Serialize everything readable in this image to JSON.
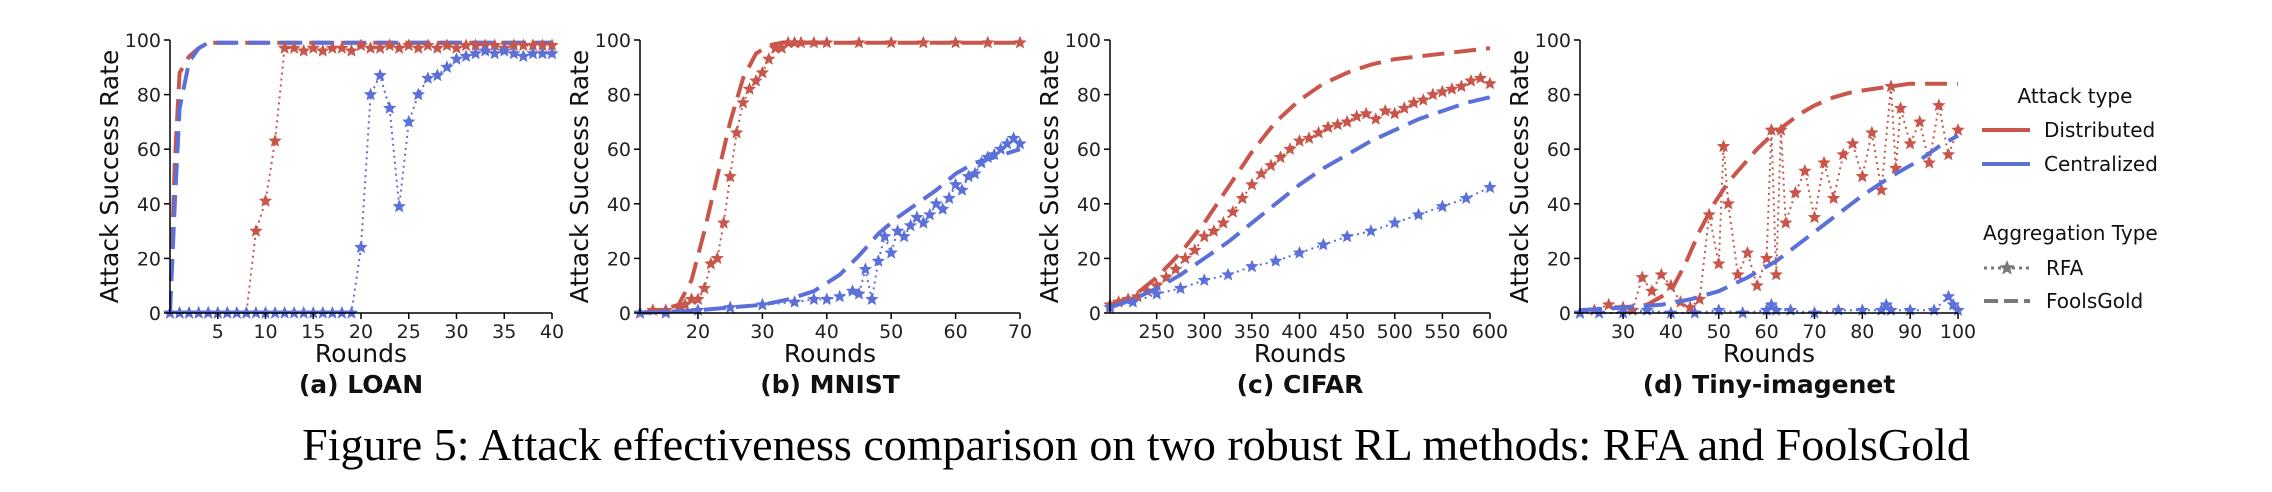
{
  "caption": "Figure 5: Attack effectiveness comparison on two robust RL methods: RFA and FoolsGold",
  "colors": {
    "distributed": "#c9564a",
    "centralized": "#5b70d9",
    "legend_gray": "#7a7a7a",
    "axis": "#000000"
  },
  "legend": {
    "attack_title": "Attack type",
    "attack_items": [
      "Distributed",
      "Centralized"
    ],
    "aggregation_title": "Aggregation Type",
    "aggregation_items": [
      "RFA",
      "FoolsGold"
    ]
  },
  "chart_data": [
    {
      "type": "line",
      "panel_title": "(a) LOAN",
      "xlabel": "Rounds",
      "ylabel": "Attack Success Rate",
      "xlim": [
        0,
        40
      ],
      "ylim": [
        0,
        100
      ],
      "xticks": [
        5,
        10,
        15,
        20,
        25,
        30,
        35,
        40
      ],
      "yticks": [
        0,
        20,
        40,
        60,
        80,
        100
      ],
      "series": [
        {
          "attack": "Distributed",
          "aggregation": "FoolsGold",
          "x": [
            0,
            0.5,
            1,
            2,
            3,
            4,
            5,
            8,
            12,
            20,
            30,
            40
          ],
          "y": [
            0,
            55,
            88,
            94,
            97,
            99,
            99,
            99,
            99,
            99,
            99,
            99
          ]
        },
        {
          "attack": "Centralized",
          "aggregation": "FoolsGold",
          "x": [
            0,
            0.5,
            1,
            2,
            3,
            4,
            6,
            10,
            20,
            30,
            40
          ],
          "y": [
            0,
            40,
            75,
            92,
            97,
            99,
            99,
            99,
            99,
            99,
            99
          ]
        },
        {
          "attack": "Distributed",
          "aggregation": "RFA",
          "x": [
            0,
            1,
            2,
            3,
            4,
            5,
            6,
            7,
            8,
            9,
            10,
            11,
            12,
            13,
            14,
            15,
            16,
            17,
            18,
            19,
            20,
            21,
            22,
            23,
            24,
            25,
            26,
            27,
            28,
            29,
            30,
            31,
            32,
            33,
            34,
            35,
            36,
            37,
            38,
            39,
            40
          ],
          "y": [
            0,
            0,
            0,
            0,
            0,
            0,
            0,
            0,
            0,
            30,
            41,
            63,
            97,
            97,
            96,
            97,
            96,
            97,
            97,
            96,
            98,
            97,
            97,
            98,
            97,
            98,
            97,
            98,
            97,
            98,
            97,
            98,
            98,
            98,
            98,
            97,
            98,
            98,
            98,
            98,
            98
          ]
        },
        {
          "attack": "Centralized",
          "aggregation": "RFA",
          "x": [
            0,
            1,
            2,
            3,
            4,
            5,
            6,
            7,
            8,
            9,
            10,
            11,
            12,
            13,
            14,
            15,
            16,
            17,
            18,
            19,
            20,
            21,
            22,
            23,
            24,
            25,
            26,
            27,
            28,
            29,
            30,
            31,
            32,
            33,
            34,
            35,
            36,
            37,
            38,
            39,
            40
          ],
          "y": [
            0,
            0,
            0,
            0,
            0,
            0,
            0,
            0,
            0,
            0,
            0,
            0,
            0,
            0,
            0,
            0,
            0,
            0,
            0,
            0,
            24,
            80,
            87,
            75,
            39,
            70,
            80,
            86,
            87,
            90,
            93,
            94,
            95,
            96,
            95,
            96,
            95,
            94,
            95,
            95,
            95
          ]
        }
      ]
    },
    {
      "type": "line",
      "panel_title": "(b) MNIST",
      "xlabel": "Rounds",
      "ylabel": "Attack Success Rate",
      "xlim": [
        11,
        70
      ],
      "ylim": [
        0,
        100
      ],
      "xticks": [
        20,
        30,
        40,
        50,
        60,
        70
      ],
      "yticks": [
        0,
        20,
        40,
        60,
        80,
        100
      ],
      "series": [
        {
          "attack": "Distributed",
          "aggregation": "FoolsGold",
          "x": [
            11,
            14,
            17,
            19,
            21,
            23,
            25,
            27,
            29,
            31,
            33,
            35,
            40,
            50,
            60,
            70
          ],
          "y": [
            0,
            1,
            3,
            12,
            30,
            50,
            70,
            86,
            95,
            98,
            99,
            99,
            99,
            99,
            99,
            99
          ]
        },
        {
          "attack": "Distributed",
          "aggregation": "RFA",
          "x": [
            11,
            13,
            15,
            17,
            18,
            19,
            20,
            21,
            22,
            23,
            24,
            25,
            26,
            27,
            28,
            29,
            30,
            31,
            32,
            33,
            34,
            35,
            36,
            38,
            40,
            45,
            50,
            55,
            60,
            65,
            70
          ],
          "y": [
            0,
            1,
            1,
            2,
            3,
            5,
            5,
            9,
            18,
            20,
            33,
            50,
            66,
            77,
            82,
            85,
            88,
            93,
            97,
            97,
            99,
            99,
            99,
            99,
            99,
            99,
            99,
            99,
            99,
            99,
            99
          ]
        },
        {
          "attack": "Centralized",
          "aggregation": "FoolsGold",
          "x": [
            11,
            20,
            25,
            30,
            34,
            38,
            42,
            45,
            48,
            51,
            54,
            57,
            60,
            63,
            66,
            70
          ],
          "y": [
            0,
            1,
            2,
            3,
            5,
            8,
            14,
            21,
            29,
            35,
            40,
            45,
            51,
            55,
            57,
            60
          ]
        },
        {
          "attack": "Centralized",
          "aggregation": "RFA",
          "x": [
            11,
            15,
            20,
            25,
            30,
            35,
            38,
            40,
            42,
            44,
            45,
            46,
            47,
            48,
            49,
            50,
            51,
            52,
            53,
            54,
            55,
            56,
            57,
            58,
            59,
            60,
            61,
            62,
            63,
            64,
            65,
            66,
            67,
            68,
            69,
            70
          ],
          "y": [
            0,
            0,
            1,
            2,
            3,
            4,
            5,
            5,
            6,
            8,
            7,
            16,
            5,
            19,
            28,
            22,
            30,
            28,
            32,
            35,
            33,
            36,
            40,
            38,
            42,
            47,
            45,
            50,
            51,
            55,
            57,
            58,
            60,
            62,
            64,
            62
          ]
        }
      ]
    },
    {
      "type": "line",
      "panel_title": "(c) CIFAR",
      "xlabel": "Rounds",
      "ylabel": "Attack Success Rate",
      "xlim": [
        201,
        600
      ],
      "ylim": [
        0,
        100
      ],
      "xticks": [
        250,
        300,
        350,
        400,
        450,
        500,
        550,
        600
      ],
      "yticks": [
        0,
        20,
        40,
        60,
        80,
        100
      ],
      "series": [
        {
          "attack": "Distributed",
          "aggregation": "FoolsGold",
          "x": [
            201,
            225,
            250,
            275,
            300,
            325,
            350,
            375,
            400,
            425,
            450,
            475,
            500,
            525,
            550,
            575,
            600
          ],
          "y": [
            3,
            6,
            13,
            22,
            33,
            46,
            59,
            70,
            78,
            84,
            88,
            91,
            93,
            94,
            95,
            96,
            97
          ]
        },
        {
          "attack": "Distributed",
          "aggregation": "RFA",
          "x": [
            201,
            210,
            220,
            230,
            240,
            250,
            260,
            270,
            280,
            290,
            300,
            310,
            320,
            330,
            340,
            350,
            360,
            370,
            380,
            390,
            400,
            410,
            420,
            430,
            440,
            450,
            460,
            470,
            480,
            490,
            500,
            510,
            520,
            530,
            540,
            550,
            560,
            570,
            580,
            590,
            600
          ],
          "y": [
            3,
            4,
            5,
            6,
            8,
            10,
            13,
            16,
            20,
            23,
            28,
            30,
            33,
            37,
            42,
            47,
            51,
            54,
            57,
            60,
            63,
            64,
            66,
            68,
            69,
            70,
            72,
            73,
            71,
            74,
            73,
            75,
            77,
            78,
            80,
            81,
            82,
            83,
            85,
            86,
            84
          ]
        },
        {
          "attack": "Centralized",
          "aggregation": "FoolsGold",
          "x": [
            201,
            225,
            250,
            275,
            300,
            325,
            350,
            375,
            400,
            425,
            450,
            475,
            500,
            525,
            550,
            575,
            600
          ],
          "y": [
            2,
            5,
            9,
            14,
            20,
            26,
            33,
            40,
            47,
            53,
            58,
            63,
            67,
            71,
            74,
            77,
            79
          ]
        },
        {
          "attack": "Centralized",
          "aggregation": "RFA",
          "x": [
            201,
            225,
            250,
            275,
            300,
            325,
            350,
            375,
            400,
            425,
            450,
            475,
            500,
            525,
            550,
            575,
            600
          ],
          "y": [
            2,
            4,
            7,
            9,
            12,
            14,
            17,
            19,
            22,
            25,
            28,
            30,
            33,
            36,
            39,
            42,
            46
          ]
        }
      ]
    },
    {
      "type": "line",
      "panel_title": "(d) Tiny-imagenet",
      "xlabel": "Rounds",
      "ylabel": "Attack Success Rate",
      "xlim": [
        21,
        100
      ],
      "ylim": [
        0,
        100
      ],
      "xticks": [
        30,
        40,
        50,
        60,
        70,
        80,
        90,
        100
      ],
      "yticks": [
        0,
        20,
        40,
        60,
        80,
        100
      ],
      "series": [
        {
          "attack": "Distributed",
          "aggregation": "FoolsGold",
          "x": [
            21,
            30,
            35,
            40,
            43,
            46,
            49,
            52,
            55,
            58,
            61,
            64,
            67,
            70,
            74,
            78,
            82,
            86,
            90,
            95,
            100
          ],
          "y": [
            1,
            2,
            3,
            8,
            18,
            30,
            40,
            48,
            54,
            60,
            65,
            69,
            73,
            76,
            79,
            81,
            82,
            83,
            84,
            84,
            84
          ]
        },
        {
          "attack": "Distributed",
          "aggregation": "RFA",
          "x": [
            21,
            24,
            27,
            30,
            32,
            34,
            36,
            38,
            40,
            42,
            44,
            46,
            48,
            50,
            51,
            52,
            54,
            56,
            58,
            60,
            61,
            62,
            63,
            64,
            66,
            68,
            70,
            72,
            74,
            76,
            78,
            80,
            82,
            84,
            86,
            87,
            88,
            90,
            92,
            94,
            96,
            98,
            100
          ],
          "y": [
            0,
            1,
            3,
            2,
            1,
            13,
            8,
            14,
            10,
            4,
            2,
            5,
            36,
            18,
            61,
            40,
            14,
            22,
            10,
            20,
            67,
            14,
            67,
            33,
            44,
            52,
            35,
            55,
            42,
            58,
            62,
            50,
            66,
            45,
            83,
            53,
            75,
            62,
            70,
            55,
            76,
            58,
            67
          ]
        },
        {
          "attack": "Centralized",
          "aggregation": "FoolsGold",
          "x": [
            21,
            30,
            38,
            44,
            50,
            56,
            62,
            68,
            74,
            80,
            86,
            92,
            96,
            100
          ],
          "y": [
            1,
            2,
            3,
            5,
            8,
            13,
            19,
            27,
            35,
            43,
            50,
            56,
            61,
            65
          ]
        },
        {
          "attack": "Centralized",
          "aggregation": "RFA",
          "x": [
            21,
            25,
            30,
            35,
            40,
            45,
            50,
            55,
            60,
            61,
            62,
            65,
            70,
            75,
            80,
            84,
            85,
            86,
            90,
            95,
            98,
            99,
            100
          ],
          "y": [
            0,
            0,
            0,
            1,
            0,
            0,
            1,
            0,
            1,
            3,
            1,
            1,
            0,
            1,
            1,
            1,
            3,
            1,
            1,
            1,
            6,
            3,
            1
          ]
        }
      ]
    }
  ]
}
